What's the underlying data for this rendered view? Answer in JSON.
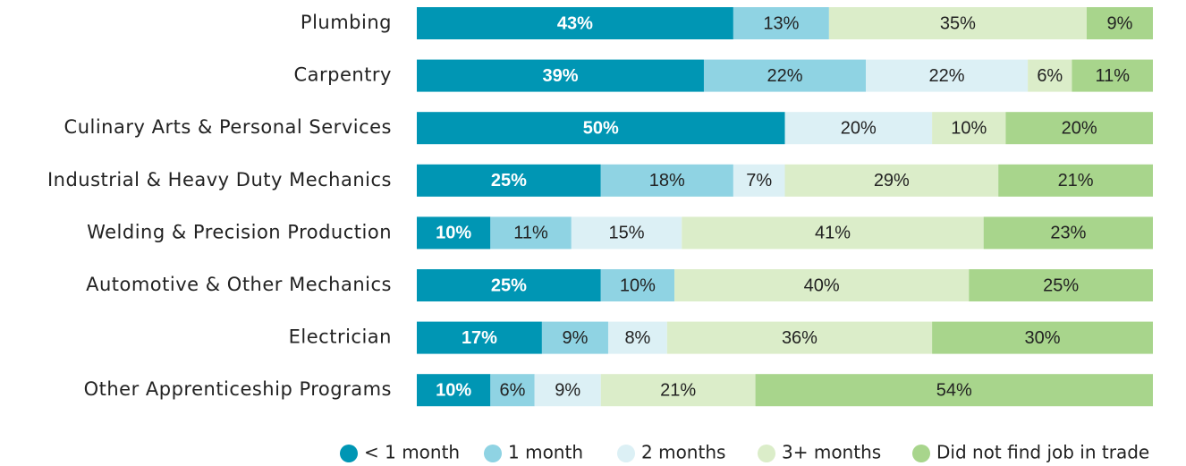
{
  "chart_data": {
    "type": "stacked-bar-horizontal",
    "categories": [
      "Plumbing",
      "Carpentry",
      "Culinary Arts & Personal Services",
      "Industrial & Heavy Duty Mechanics",
      "Welding & Precision Production",
      "Automotive & Other Mechanics",
      "Electrician",
      "Other Apprenticeship Programs"
    ],
    "xlim": [
      0,
      100
    ],
    "series": [
      {
        "name": "< 1 month",
        "color": "#0096b4",
        "values": [
          43,
          39,
          50,
          25,
          10,
          25,
          17,
          10
        ],
        "value_labels": [
          "43%",
          "39%",
          "50%",
          "25%",
          "10%",
          "25%",
          "17%",
          "10%"
        ]
      },
      {
        "name": "1 month",
        "color": "#8fd3e3",
        "values": [
          13,
          22,
          0,
          18,
          11,
          10,
          9,
          6
        ],
        "value_labels": [
          "13%",
          "22%",
          null,
          "18%",
          "11%",
          "10%",
          "9%",
          "6%"
        ]
      },
      {
        "name": "2 months",
        "color": "#dcf0f5",
        "values": [
          0,
          22,
          20,
          7,
          15,
          0,
          8,
          9
        ],
        "value_labels": [
          null,
          "22%",
          "20%",
          "7%",
          "15%",
          null,
          "8%",
          "9%"
        ]
      },
      {
        "name": "3+ months",
        "color": "#dbedc9",
        "values": [
          35,
          6,
          10,
          29,
          41,
          40,
          36,
          21
        ],
        "value_labels": [
          "35%",
          "6%",
          "10%",
          "29%",
          "41%",
          "40%",
          "36%",
          "21%"
        ]
      },
      {
        "name": "Did not find job in trade",
        "color": "#a8d58c",
        "values": [
          9,
          11,
          20,
          21,
          23,
          25,
          30,
          54
        ],
        "value_labels": [
          "9%",
          "11%",
          "20%",
          "21%",
          "23%",
          "25%",
          "30%",
          "54%"
        ]
      }
    ]
  }
}
